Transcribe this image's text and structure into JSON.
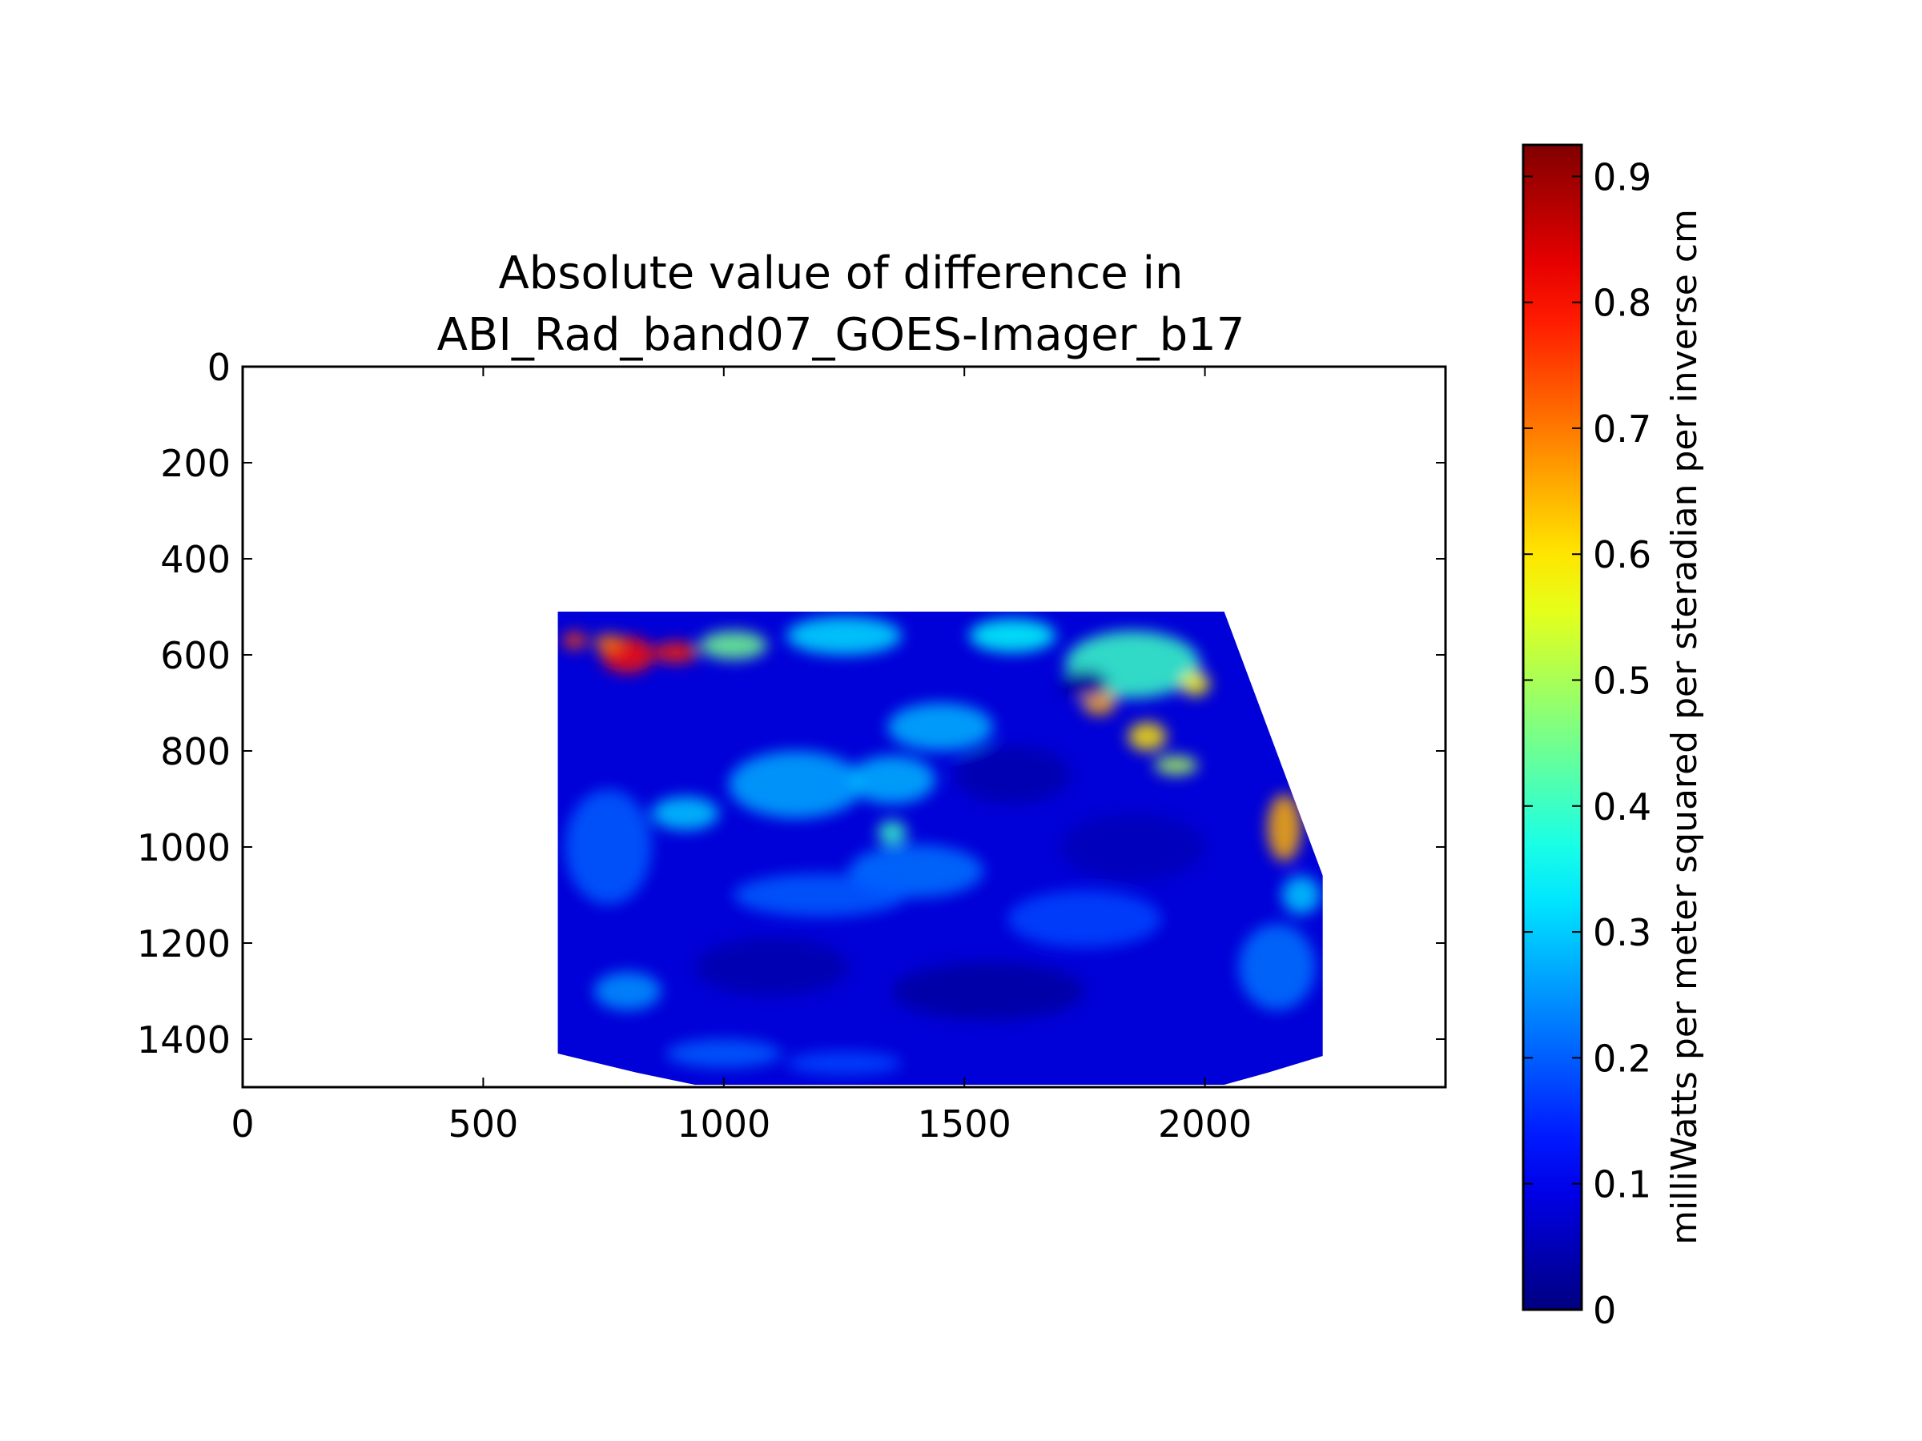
{
  "chart_data": {
    "type": "heatmap",
    "title": [
      "Absolute value of difference in",
      "ABI_Rad_band07_GOES-Imager_b17"
    ],
    "xlim": [
      0,
      2500
    ],
    "ylim": [
      1500,
      0
    ],
    "x_ticks": [
      0,
      500,
      1000,
      1500,
      2000
    ],
    "y_ticks": [
      0,
      200,
      400,
      600,
      800,
      1000,
      1200,
      1400
    ],
    "data_extent": {
      "x_range": [
        655,
        2245
      ],
      "y_range": [
        510,
        1500
      ],
      "outline": [
        [
          655,
          510
        ],
        [
          2040,
          510
        ],
        [
          2245,
          1060
        ],
        [
          2245,
          1435
        ],
        [
          2130,
          1470
        ],
        [
          2040,
          1495
        ],
        [
          940,
          1495
        ],
        [
          820,
          1470
        ],
        [
          655,
          1430
        ]
      ]
    },
    "colorbar": {
      "colormap": "jet",
      "range": [
        0,
        0.925
      ],
      "ticks": [
        0,
        0.1,
        0.2,
        0.3,
        0.4,
        0.5,
        0.6,
        0.7,
        0.8,
        0.9
      ],
      "tick_labels": [
        "0",
        "0.1",
        "0.2",
        "0.3",
        "0.4",
        "0.5",
        "0.6",
        "0.7",
        "0.8",
        "0.9"
      ],
      "label": "milliWatts per meter squared per steradian per inverse cm"
    },
    "grid": false,
    "background_value": 0.08,
    "features": [
      {
        "x": 800,
        "y": 600,
        "rx": 55,
        "ry": 38,
        "value": 0.8
      },
      {
        "x": 900,
        "y": 595,
        "rx": 45,
        "ry": 22,
        "value": 0.78
      },
      {
        "x": 760,
        "y": 575,
        "rx": 30,
        "ry": 18,
        "value": 0.7
      },
      {
        "x": 690,
        "y": 570,
        "rx": 25,
        "ry": 18,
        "value": 0.75
      },
      {
        "x": 1020,
        "y": 580,
        "rx": 70,
        "ry": 30,
        "value": 0.45
      },
      {
        "x": 1250,
        "y": 560,
        "rx": 120,
        "ry": 40,
        "value": 0.32
      },
      {
        "x": 1600,
        "y": 560,
        "rx": 90,
        "ry": 35,
        "value": 0.35
      },
      {
        "x": 1850,
        "y": 620,
        "rx": 140,
        "ry": 70,
        "value": 0.4
      },
      {
        "x": 1780,
        "y": 700,
        "rx": 35,
        "ry": 25,
        "value": 0.65
      },
      {
        "x": 1880,
        "y": 770,
        "rx": 40,
        "ry": 30,
        "value": 0.6
      },
      {
        "x": 1980,
        "y": 660,
        "rx": 30,
        "ry": 25,
        "value": 0.58
      },
      {
        "x": 1940,
        "y": 830,
        "rx": 45,
        "ry": 20,
        "value": 0.5
      },
      {
        "x": 2165,
        "y": 960,
        "rx": 35,
        "ry": 70,
        "value": 0.65
      },
      {
        "x": 1450,
        "y": 750,
        "rx": 110,
        "ry": 50,
        "value": 0.28
      },
      {
        "x": 1150,
        "y": 870,
        "rx": 140,
        "ry": 70,
        "value": 0.27
      },
      {
        "x": 1350,
        "y": 860,
        "rx": 90,
        "ry": 50,
        "value": 0.28
      },
      {
        "x": 920,
        "y": 930,
        "rx": 70,
        "ry": 35,
        "value": 0.3
      },
      {
        "x": 1350,
        "y": 970,
        "rx": 30,
        "ry": 25,
        "value": 0.4
      },
      {
        "x": 1400,
        "y": 1050,
        "rx": 140,
        "ry": 55,
        "value": 0.22
      },
      {
        "x": 1200,
        "y": 1100,
        "rx": 180,
        "ry": 45,
        "value": 0.2
      },
      {
        "x": 760,
        "y": 1000,
        "rx": 90,
        "ry": 120,
        "value": 0.2
      },
      {
        "x": 1750,
        "y": 1150,
        "rx": 160,
        "ry": 60,
        "value": 0.18
      },
      {
        "x": 2150,
        "y": 1250,
        "rx": 80,
        "ry": 90,
        "value": 0.22
      },
      {
        "x": 2200,
        "y": 1100,
        "rx": 40,
        "ry": 40,
        "value": 0.3
      },
      {
        "x": 800,
        "y": 1300,
        "rx": 70,
        "ry": 40,
        "value": 0.25
      },
      {
        "x": 1000,
        "y": 1430,
        "rx": 120,
        "ry": 30,
        "value": 0.2
      },
      {
        "x": 1250,
        "y": 1450,
        "rx": 120,
        "ry": 25,
        "value": 0.18
      },
      {
        "x": 1550,
        "y": 1300,
        "rx": 200,
        "ry": 60,
        "value": 0.03
      },
      {
        "x": 1100,
        "y": 1250,
        "rx": 160,
        "ry": 60,
        "value": 0.04
      },
      {
        "x": 1600,
        "y": 850,
        "rx": 120,
        "ry": 60,
        "value": 0.04
      },
      {
        "x": 1850,
        "y": 1000,
        "rx": 150,
        "ry": 70,
        "value": 0.05
      },
      {
        "x": 1750,
        "y": 660,
        "rx": 50,
        "ry": 30,
        "value": 0.02
      }
    ]
  }
}
